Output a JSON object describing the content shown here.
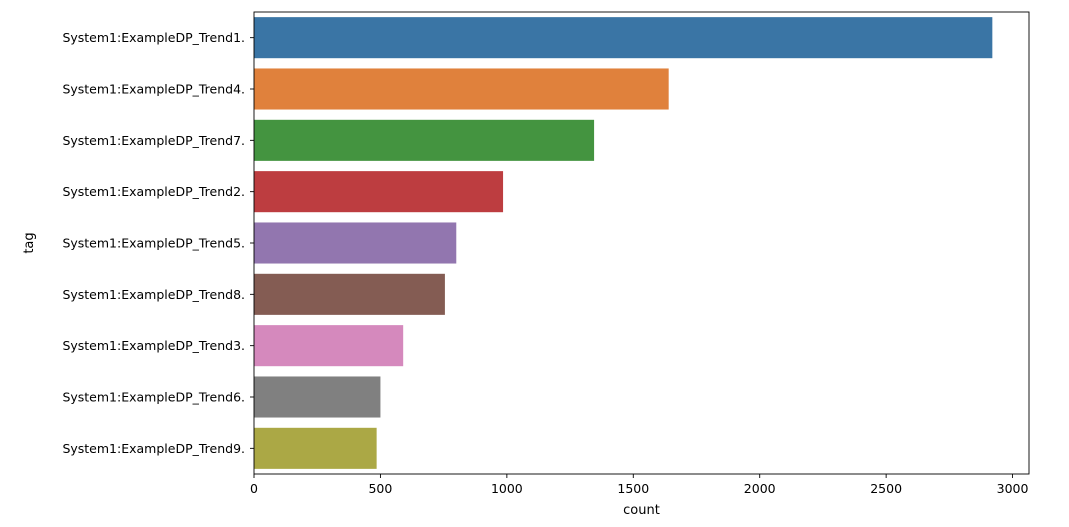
{
  "chart_data": {
    "type": "bar",
    "orientation": "horizontal",
    "title": "",
    "xlabel": "count",
    "ylabel": "tag",
    "xlim": [
      0,
      3065
    ],
    "xticks": [
      0,
      500,
      1000,
      1500,
      2000,
      2500,
      3000
    ],
    "xtick_labels": [
      "0",
      "500",
      "1000",
      "1500",
      "2000",
      "2500",
      "3000"
    ],
    "grid": false,
    "legend": "none",
    "categories": [
      "System1:ExampleDP_Trend1.",
      "System1:ExampleDP_Trend4.",
      "System1:ExampleDP_Trend7.",
      "System1:ExampleDP_Trend2.",
      "System1:ExampleDP_Trend5.",
      "System1:ExampleDP_Trend8.",
      "System1:ExampleDP_Trend3.",
      "System1:ExampleDP_Trend6.",
      "System1:ExampleDP_Trend9."
    ],
    "values": [
      2920,
      1640,
      1345,
      985,
      800,
      755,
      590,
      500,
      485
    ],
    "colors": [
      "#3a75a5",
      "#e0813c",
      "#449440",
      "#bd3d40",
      "#9276af",
      "#845c53",
      "#d589bd",
      "#808080",
      "#aba845"
    ]
  }
}
